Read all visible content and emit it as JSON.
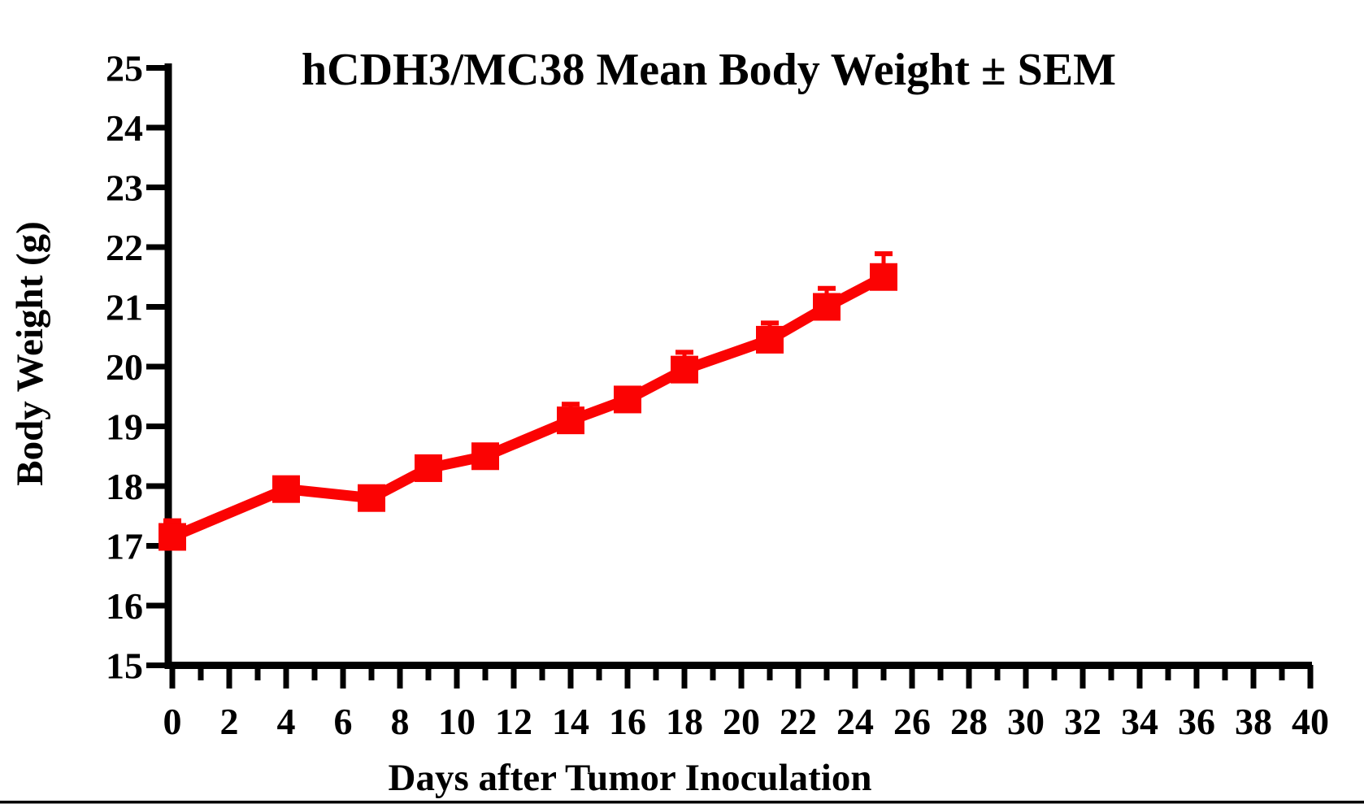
{
  "chart_data": {
    "type": "line",
    "title": "hCDH3/MC38 Mean Body Weight ± SEM",
    "xlabel": "Days after Tumor Inoculation",
    "ylabel": "Body Weight (g)",
    "xlim": [
      0,
      40
    ],
    "ylim": [
      15,
      25
    ],
    "grid": false,
    "legend_position": "none",
    "background_color": "#FFFFFF",
    "axis_color": "#000000",
    "x_major_tick_interval": 2,
    "x_minor_tick_interval": 1,
    "y_tick_interval": 1,
    "x_tick_labels": [
      "0",
      "2",
      "4",
      "6",
      "8",
      "10",
      "12",
      "14",
      "16",
      "18",
      "20",
      "22",
      "24",
      "26",
      "28",
      "30",
      "32",
      "34",
      "36",
      "38",
      "40"
    ],
    "y_tick_labels": [
      "15",
      "16",
      "17",
      "18",
      "19",
      "20",
      "21",
      "22",
      "23",
      "24",
      "25"
    ],
    "error_bar_style": "SEM, caps drawn upward only",
    "series": [
      {
        "name": "hCDH3/MC38 mean body weight",
        "color": "#FB0303",
        "marker": "square",
        "x": [
          0,
          4,
          7,
          9,
          11,
          14,
          16,
          18,
          21,
          23,
          25
        ],
        "y": [
          17.15,
          17.95,
          17.8,
          18.3,
          18.5,
          19.1,
          19.45,
          19.95,
          20.45,
          21.0,
          21.5
        ],
        "sem": [
          0.27,
          0.15,
          0.15,
          0.15,
          0.15,
          0.27,
          0.15,
          0.29,
          0.28,
          0.31,
          0.39
        ]
      }
    ]
  }
}
